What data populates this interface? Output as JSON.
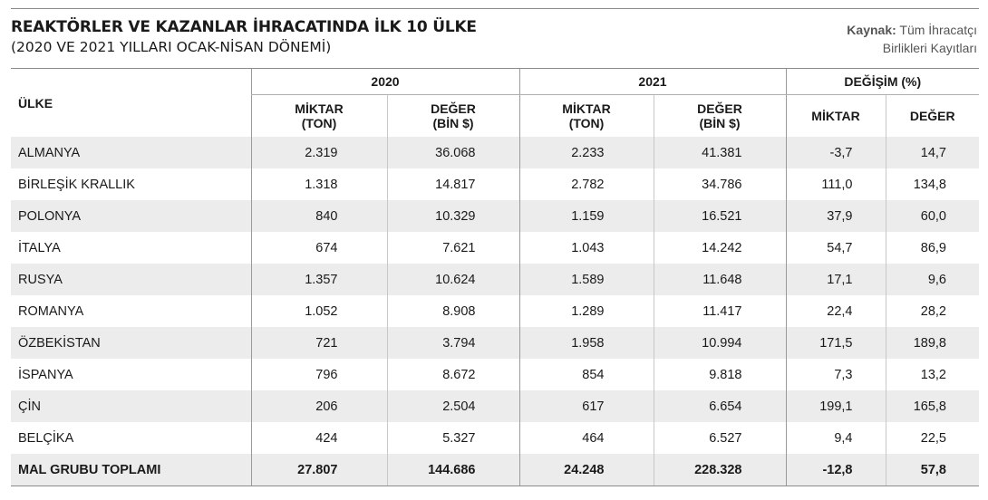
{
  "title": "REAKTÖRLER VE KAZANLAR İHRACATINDA İLK 10 ÜLKE",
  "subtitle": "(2020 VE 2021 YILLARI OCAK-NİSAN DÖNEMİ)",
  "source": {
    "label": "Kaynak:",
    "line1": "Tüm İhracatçı",
    "line2": "Birlikleri Kayıtları"
  },
  "table": {
    "country_header": "ÜLKE",
    "year_2020": "2020",
    "year_2021": "2021",
    "change_header": "DEĞİŞİM (%)",
    "qty_label_line1": "MİKTAR",
    "qty_label_line2": "(TON)",
    "value_label_line1": "DEĞER",
    "value_label_line2": "(BİN $)",
    "change_qty": "MİKTAR",
    "change_value": "DEĞER",
    "rows": [
      {
        "country": "ALMANYA",
        "q2020": "2.319",
        "v2020": "36.068",
        "q2021": "2.233",
        "v2021": "41.381",
        "cq": "-3,7",
        "cv": "14,7"
      },
      {
        "country": "BİRLEŞİK KRALLIK",
        "q2020": "1.318",
        "v2020": "14.817",
        "q2021": "2.782",
        "v2021": "34.786",
        "cq": "111,0",
        "cv": "134,8"
      },
      {
        "country": "POLONYA",
        "q2020": "840",
        "v2020": "10.329",
        "q2021": "1.159",
        "v2021": "16.521",
        "cq": "37,9",
        "cv": "60,0"
      },
      {
        "country": "İTALYA",
        "q2020": "674",
        "v2020": "7.621",
        "q2021": "1.043",
        "v2021": "14.242",
        "cq": "54,7",
        "cv": "86,9"
      },
      {
        "country": "RUSYA",
        "q2020": "1.357",
        "v2020": "10.624",
        "q2021": "1.589",
        "v2021": "11.648",
        "cq": "17,1",
        "cv": "9,6"
      },
      {
        "country": "ROMANYA",
        "q2020": "1.052",
        "v2020": "8.908",
        "q2021": "1.289",
        "v2021": "11.417",
        "cq": "22,4",
        "cv": "28,2"
      },
      {
        "country": "ÖZBEKİSTAN",
        "q2020": "721",
        "v2020": "3.794",
        "q2021": "1.958",
        "v2021": "10.994",
        "cq": "171,5",
        "cv": "189,8"
      },
      {
        "country": "İSPANYA",
        "q2020": "796",
        "v2020": "8.672",
        "q2021": "854",
        "v2021": "9.818",
        "cq": "7,3",
        "cv": "13,2"
      },
      {
        "country": "ÇİN",
        "q2020": "206",
        "v2020": "2.504",
        "q2021": "617",
        "v2021": "6.654",
        "cq": "199,1",
        "cv": "165,8"
      },
      {
        "country": "BELÇİKA",
        "q2020": "424",
        "v2020": "5.327",
        "q2021": "464",
        "v2021": "6.527",
        "cq": "9,4",
        "cv": "22,5"
      }
    ],
    "total": {
      "country": "MAL GRUBU TOPLAMI",
      "q2020": "27.807",
      "v2020": "144.686",
      "q2021": "24.248",
      "v2021": "228.328",
      "cq": "-12,8",
      "cv": "57,8"
    }
  },
  "colors": {
    "row_shade": "#ececec",
    "text": "#1a1a1a",
    "source_text": "#555555"
  }
}
